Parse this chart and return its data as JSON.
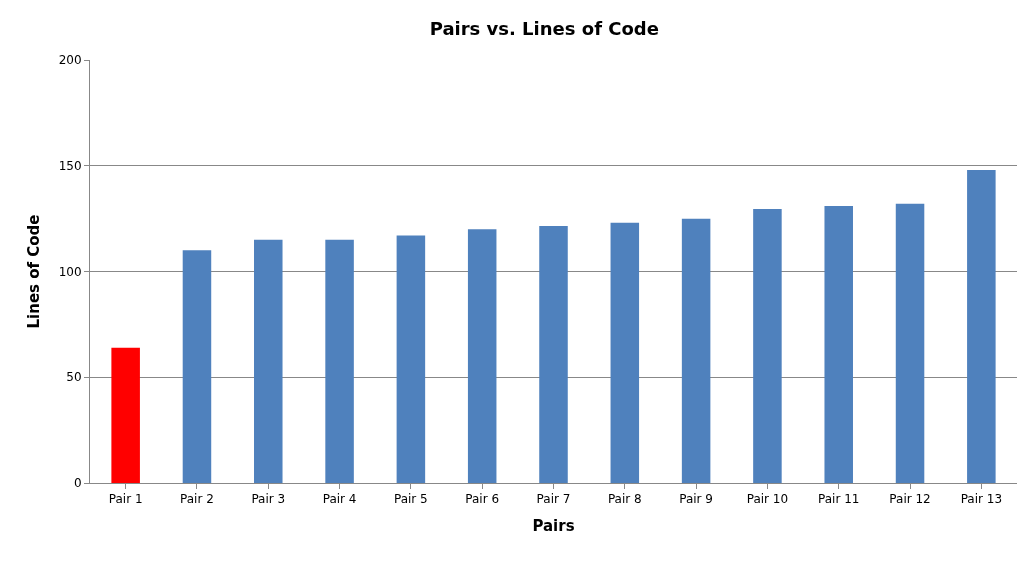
{
  "chart_data": {
    "type": "bar",
    "title": "Pairs vs. Lines of Code",
    "xlabel": "Pairs",
    "ylabel": "Lines of Code",
    "categories": [
      "Pair 1",
      "Pair 2",
      "Pair 3",
      "Pair 4",
      "Pair 5",
      "Pair 6",
      "Pair 7",
      "Pair 8",
      "Pair 9",
      "Pair 10",
      "Pair 11",
      "Pair 12",
      "Pair 13"
    ],
    "values": [
      64,
      110,
      115,
      115,
      117,
      120,
      121.5,
      123,
      125,
      129.5,
      131,
      132,
      148
    ],
    "colors": [
      "#ff0000",
      "#4f81bd",
      "#4f81bd",
      "#4f81bd",
      "#4f81bd",
      "#4f81bd",
      "#4f81bd",
      "#4f81bd",
      "#4f81bd",
      "#4f81bd",
      "#4f81bd",
      "#4f81bd",
      "#4f81bd"
    ],
    "ylim": [
      0,
      200
    ],
    "yticks": [
      0,
      50,
      100,
      150,
      200
    ],
    "grid": "y",
    "legend": false
  }
}
